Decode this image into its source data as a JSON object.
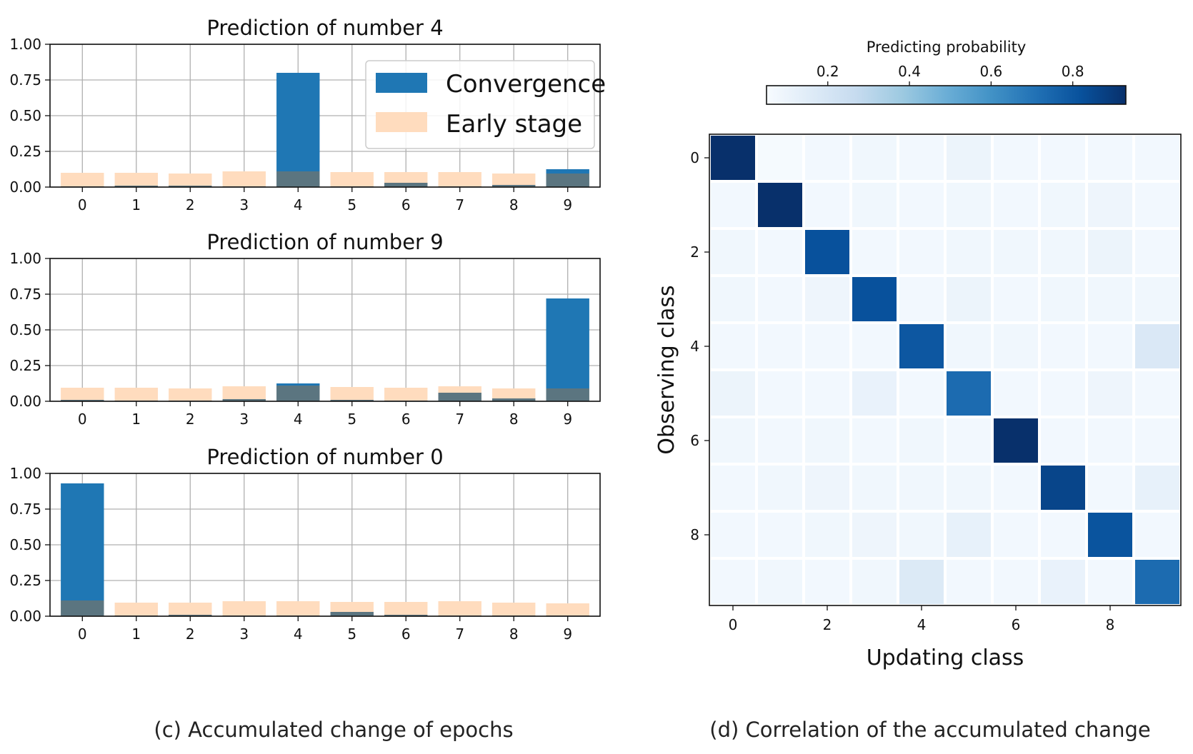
{
  "colors": {
    "convergence": "#1f77b4",
    "early_stage": "#ffdcbe",
    "overlap": "#5b7580",
    "grid": "#b0b0b0",
    "cmap": [
      "#f7fbff",
      "#deebf7",
      "#c6dbef",
      "#9ecae1",
      "#6baed6",
      "#4292c6",
      "#2171b5",
      "#08519c",
      "#08306b"
    ]
  },
  "captions": {
    "left": "(c) Accumulated change of epochs",
    "right": "(d) Correlation of the accumulated change"
  },
  "chart_data": [
    {
      "type": "bar",
      "title": "Prediction of number 4",
      "categories": [
        "0",
        "1",
        "2",
        "3",
        "4",
        "5",
        "6",
        "7",
        "8",
        "9"
      ],
      "ylim": [
        0,
        1
      ],
      "yticks": [
        "0.00",
        "0.25",
        "0.50",
        "0.75",
        "1.00"
      ],
      "legend": {
        "position": "top-right",
        "entries": [
          "Convergence",
          "Early stage"
        ]
      },
      "series": [
        {
          "name": "Convergence",
          "values": [
            0.005,
            0.01,
            0.01,
            0.005,
            0.8,
            0.005,
            0.03,
            0.005,
            0.015,
            0.125
          ]
        },
        {
          "name": "Early stage",
          "values": [
            0.1,
            0.1,
            0.095,
            0.11,
            0.11,
            0.105,
            0.105,
            0.105,
            0.095,
            0.095
          ]
        }
      ]
    },
    {
      "type": "bar",
      "title": "Prediction of number 9",
      "categories": [
        "0",
        "1",
        "2",
        "3",
        "4",
        "5",
        "6",
        "7",
        "8",
        "9"
      ],
      "ylim": [
        0,
        1
      ],
      "yticks": [
        "0.00",
        "0.25",
        "0.50",
        "0.75",
        "1.00"
      ],
      "series": [
        {
          "name": "Convergence",
          "values": [
            0.01,
            0.005,
            0.005,
            0.015,
            0.125,
            0.01,
            0.005,
            0.06,
            0.02,
            0.72
          ]
        },
        {
          "name": "Early stage",
          "values": [
            0.095,
            0.095,
            0.09,
            0.105,
            0.11,
            0.1,
            0.095,
            0.105,
            0.09,
            0.09
          ]
        }
      ]
    },
    {
      "type": "bar",
      "title": "Prediction of number 0",
      "categories": [
        "0",
        "1",
        "2",
        "3",
        "4",
        "5",
        "6",
        "7",
        "8",
        "9"
      ],
      "ylim": [
        0,
        1
      ],
      "yticks": [
        "0.00",
        "0.25",
        "0.50",
        "0.75",
        "1.00"
      ],
      "series": [
        {
          "name": "Convergence",
          "values": [
            0.93,
            0.005,
            0.01,
            0.005,
            0.005,
            0.03,
            0.01,
            0.005,
            0.005,
            0.005
          ]
        },
        {
          "name": "Early stage",
          "values": [
            0.11,
            0.095,
            0.095,
            0.105,
            0.105,
            0.1,
            0.1,
            0.105,
            0.095,
            0.09
          ]
        }
      ]
    },
    {
      "type": "heatmap",
      "xlabel": "Updating class",
      "ylabel": "Observing class",
      "xticks": [
        "0",
        "2",
        "4",
        "6",
        "8"
      ],
      "yticks": [
        "0",
        "2",
        "4",
        "6",
        "8"
      ],
      "colorbar": {
        "label": "Predicting probability",
        "ticks": [
          "0.2",
          "0.4",
          "0.6",
          "0.8"
        ],
        "range": [
          0.05,
          0.93
        ]
      },
      "matrix": [
        [
          0.93,
          0.06,
          0.07,
          0.08,
          0.07,
          0.1,
          0.07,
          0.07,
          0.07,
          0.07
        ],
        [
          0.07,
          0.93,
          0.07,
          0.08,
          0.07,
          0.08,
          0.07,
          0.08,
          0.09,
          0.07
        ],
        [
          0.08,
          0.07,
          0.82,
          0.07,
          0.07,
          0.08,
          0.08,
          0.08,
          0.1,
          0.07
        ],
        [
          0.08,
          0.07,
          0.09,
          0.82,
          0.07,
          0.1,
          0.07,
          0.08,
          0.08,
          0.08
        ],
        [
          0.07,
          0.07,
          0.07,
          0.07,
          0.8,
          0.08,
          0.08,
          0.07,
          0.07,
          0.18
        ],
        [
          0.1,
          0.07,
          0.07,
          0.11,
          0.07,
          0.73,
          0.07,
          0.07,
          0.09,
          0.07
        ],
        [
          0.08,
          0.07,
          0.08,
          0.07,
          0.08,
          0.07,
          0.93,
          0.07,
          0.07,
          0.07
        ],
        [
          0.07,
          0.08,
          0.09,
          0.08,
          0.08,
          0.08,
          0.07,
          0.86,
          0.07,
          0.12
        ],
        [
          0.07,
          0.07,
          0.08,
          0.09,
          0.08,
          0.12,
          0.07,
          0.07,
          0.81,
          0.07
        ],
        [
          0.07,
          0.08,
          0.07,
          0.08,
          0.17,
          0.07,
          0.07,
          0.11,
          0.07,
          0.73
        ]
      ]
    }
  ]
}
